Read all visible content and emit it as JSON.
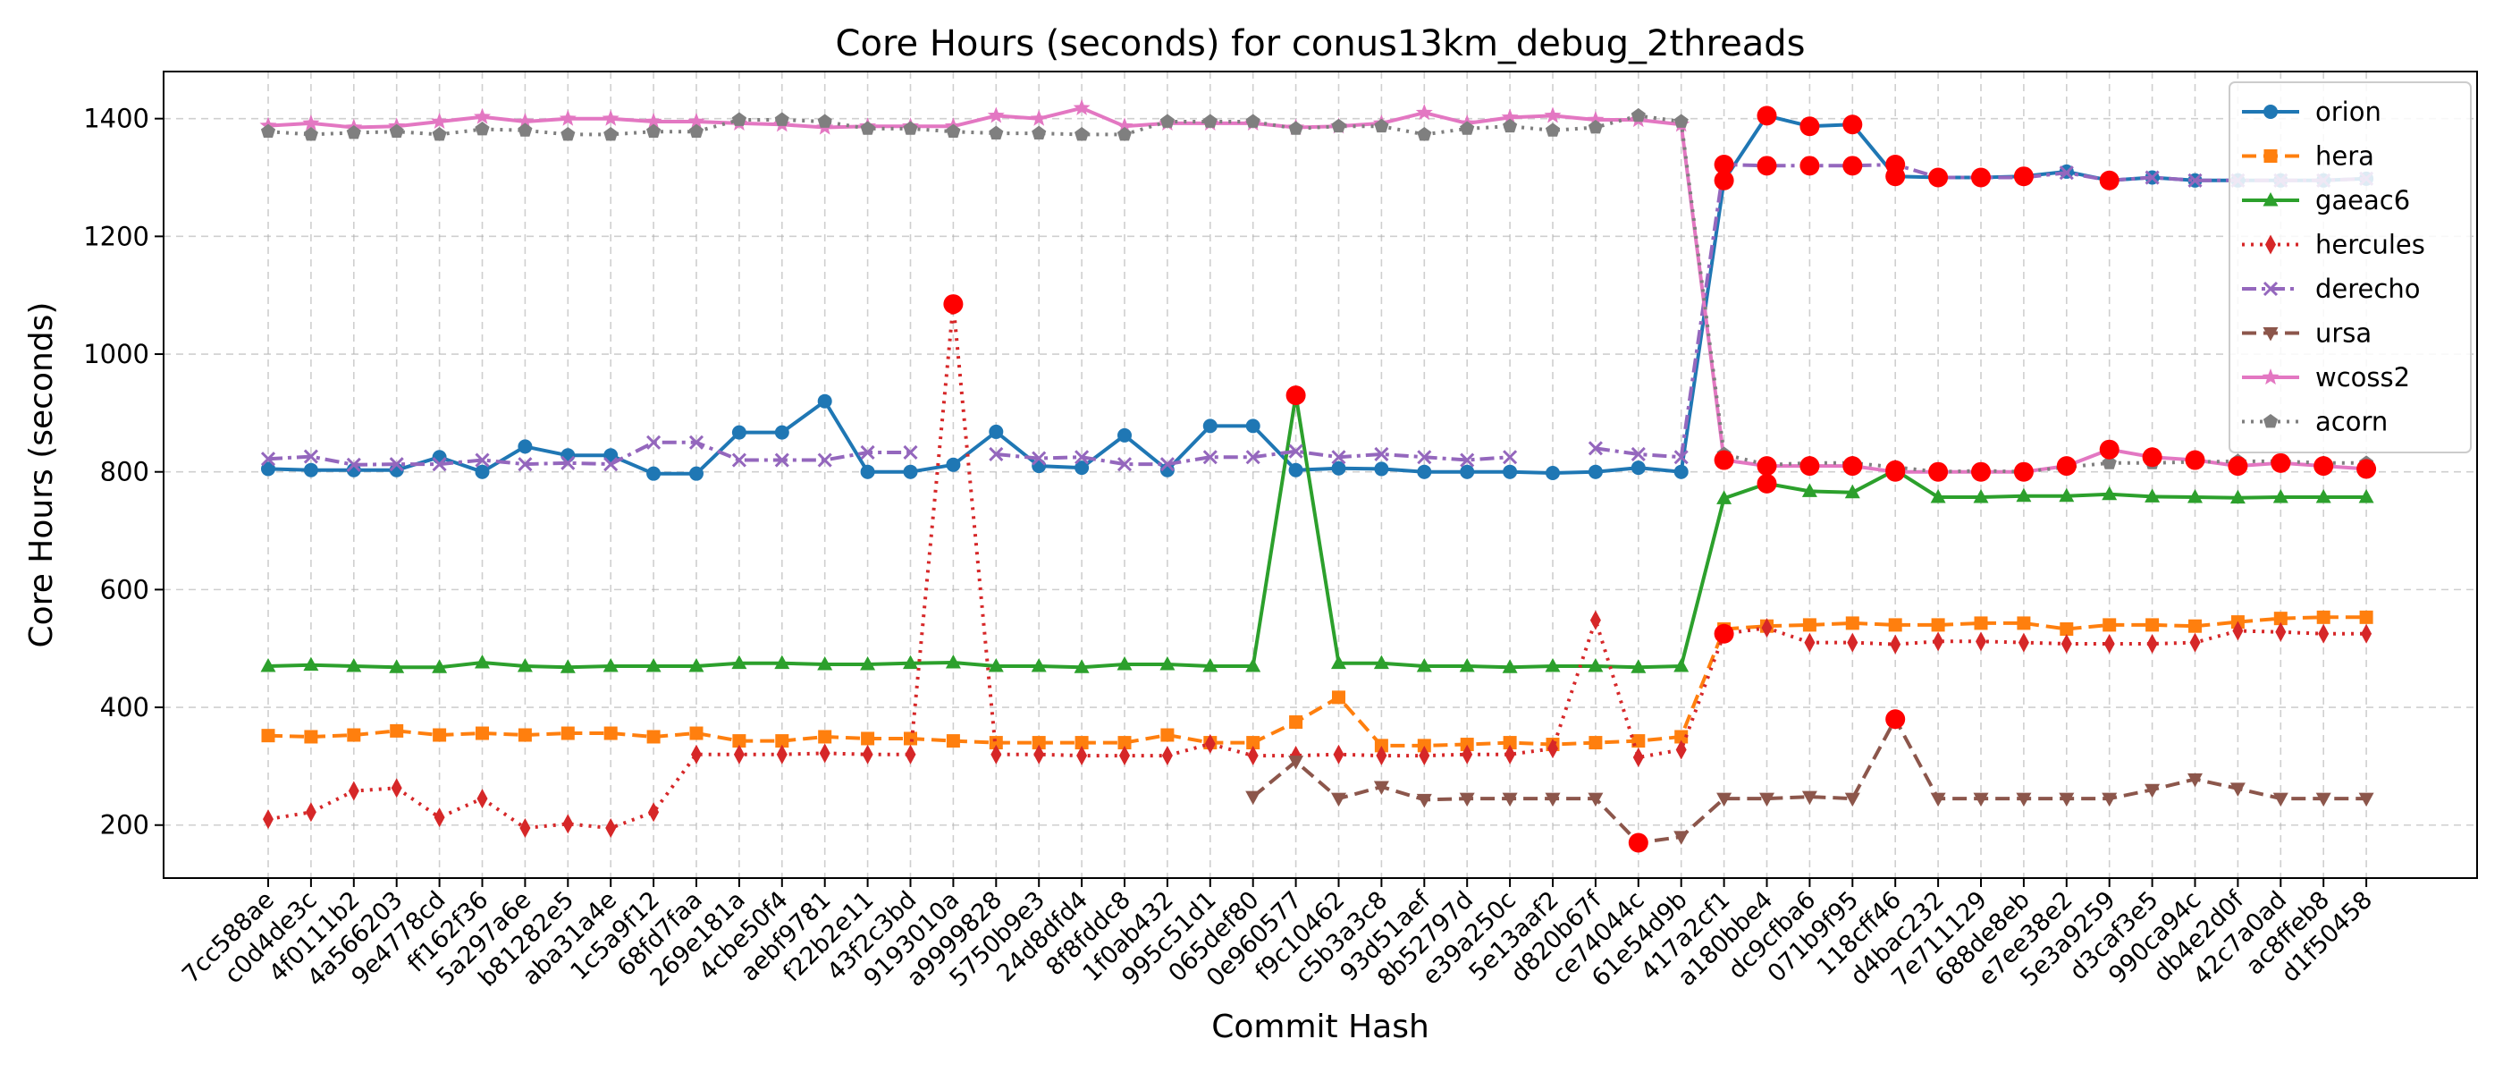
{
  "chart_data": {
    "type": "line",
    "title": "Core Hours (seconds) for conus13km_debug_2threads",
    "xlabel": "Commit Hash",
    "ylabel": "Core Hours (seconds)",
    "ylim": [
      110,
      1480
    ],
    "yticks": [
      200,
      400,
      600,
      800,
      1000,
      1200,
      1400
    ],
    "grid": true,
    "legend": "top-right",
    "highlight_color": "#ff0000",
    "categories": [
      "7cc588ae",
      "c0d4de3c",
      "4f0111b2",
      "4a566203",
      "9e4778cd",
      "ff162f36",
      "5a297a6e",
      "b81282e5",
      "aba31a4e",
      "1c5a9f12",
      "68fd7faa",
      "269e181a",
      "4cbe50f4",
      "aebf9781",
      "f22b2e11",
      "43f2c3bd",
      "9193010a",
      "a9999828",
      "5750b9e3",
      "24d8dfd4",
      "8f8fddc8",
      "1f0ab432",
      "995c51d1",
      "065def80",
      "0e960577",
      "f9c10462",
      "c5b3a3c8",
      "93d51aef",
      "8b52797d",
      "e39a250c",
      "5e13aaf2",
      "d820b67f",
      "ce74044c",
      "61e54d9b",
      "417a2cf1",
      "a180bbe4",
      "dc9cfba6",
      "071b9f95",
      "118cff46",
      "d4bac232",
      "7e711129",
      "688de8eb",
      "e7ee38e2",
      "5e3a9259",
      "d3caf3e5",
      "990ca94c",
      "db4e2d0f",
      "42c7a0ad",
      "ac8ffeb8",
      "d1f50458"
    ],
    "series": [
      {
        "name": "orion",
        "color": "#1f77b4",
        "marker": "circle",
        "dash": "solid",
        "values": [
          805,
          803,
          803,
          803,
          825,
          800,
          843,
          828,
          828,
          797,
          797,
          867,
          867,
          920,
          800,
          800,
          812,
          868,
          810,
          807,
          862,
          803,
          878,
          878,
          803,
          806,
          805,
          800,
          800,
          800,
          798,
          800,
          807,
          800,
          1295,
          1405,
          1387,
          1390,
          1302,
          1300,
          1300,
          1302,
          1310,
          1295,
          1300,
          1295,
          1295,
          1295,
          1295,
          1298
        ],
        "highlight": [
          34,
          35,
          36,
          37,
          38,
          39,
          40,
          41,
          43
        ]
      },
      {
        "name": "hera",
        "color": "#ff7f0e",
        "marker": "square",
        "dash": "dashed",
        "values": [
          352,
          350,
          353,
          360,
          353,
          356,
          353,
          356,
          356,
          350,
          356,
          343,
          343,
          350,
          347,
          347,
          343,
          340,
          340,
          340,
          340,
          353,
          340,
          340,
          375,
          417,
          335,
          335,
          337,
          340,
          337,
          340,
          343,
          350,
          533,
          538,
          540,
          543,
          540,
          540,
          543,
          543,
          533,
          540,
          540,
          538,
          545,
          551,
          553,
          553
        ],
        "highlight": []
      },
      {
        "name": "gaeac6",
        "color": "#2ca02c",
        "marker": "triangle",
        "dash": "solid",
        "values": [
          470,
          472,
          470,
          468,
          468,
          476,
          470,
          468,
          470,
          470,
          470,
          475,
          475,
          473,
          473,
          475,
          476,
          470,
          470,
          468,
          473,
          473,
          470,
          470,
          930,
          475,
          475,
          470,
          470,
          468,
          470,
          470,
          468,
          470,
          755,
          780,
          767,
          765,
          803,
          757,
          757,
          759,
          759,
          762,
          758,
          757,
          756,
          757,
          757,
          757
        ],
        "highlight": [
          24,
          35,
          38
        ]
      },
      {
        "name": "hercules",
        "color": "#d62728",
        "marker": "thin_diamond",
        "dash": "dotted",
        "values": [
          210,
          222,
          258,
          263,
          213,
          245,
          195,
          202,
          195,
          222,
          320,
          320,
          320,
          322,
          320,
          320,
          1085,
          320,
          320,
          318,
          318,
          318,
          338,
          318,
          318,
          320,
          318,
          318,
          320,
          320,
          330,
          548,
          315,
          328,
          525,
          535,
          510,
          510,
          507,
          512,
          512,
          510,
          508,
          508,
          508,
          510,
          530,
          528,
          525,
          525
        ],
        "highlight": [
          16,
          34
        ]
      },
      {
        "name": "derecho",
        "color": "#9467bd",
        "marker": "x",
        "dash": "dashdot",
        "values": [
          822,
          826,
          812,
          813,
          813,
          820,
          813,
          815,
          813,
          850,
          850,
          820,
          820,
          820,
          833,
          833,
          null,
          830,
          823,
          825,
          813,
          813,
          825,
          825,
          835,
          825,
          830,
          825,
          820,
          825,
          null,
          840,
          830,
          825,
          1322,
          1320,
          1320,
          1320,
          1322,
          1300,
          1300,
          1300,
          1308,
          1295,
          1300,
          1295,
          1295,
          1295,
          1295,
          1298
        ],
        "highlight": [
          34,
          35,
          36,
          37,
          38
        ]
      },
      {
        "name": "ursa",
        "color": "#8c564b",
        "marker": "triangle_down",
        "dash": "dashed",
        "values": [
          null,
          null,
          null,
          null,
          null,
          null,
          null,
          null,
          null,
          null,
          null,
          null,
          null,
          null,
          null,
          null,
          null,
          null,
          null,
          null,
          null,
          null,
          null,
          248,
          308,
          245,
          265,
          243,
          245,
          245,
          245,
          245,
          170,
          180,
          245,
          245,
          248,
          245,
          380,
          245,
          245,
          245,
          245,
          245,
          260,
          278,
          262,
          245,
          245,
          245
        ],
        "highlight": [
          32,
          38
        ]
      },
      {
        "name": "wcoss2",
        "color": "#e377c2",
        "marker": "star",
        "dash": "solid",
        "values": [
          1388,
          1392,
          1385,
          1387,
          1395,
          1403,
          1395,
          1400,
          1400,
          1395,
          1395,
          1392,
          1390,
          1385,
          1387,
          1387,
          1387,
          1405,
          1400,
          1418,
          1387,
          1392,
          1392,
          1392,
          1385,
          1387,
          1392,
          1410,
          1392,
          1402,
          1405,
          1398,
          1398,
          1390,
          820,
          810,
          810,
          810,
          800,
          800,
          800,
          800,
          810,
          838,
          825,
          820,
          810,
          815,
          810,
          805
        ],
        "highlight": [
          34,
          35,
          36,
          37,
          38,
          39,
          40,
          41,
          42,
          43,
          44,
          45,
          46,
          47,
          48,
          49
        ]
      },
      {
        "name": "acorn",
        "color": "#7f7f7f",
        "marker": "pentagon",
        "dash": "dotted",
        "values": [
          1378,
          1373,
          1376,
          1378,
          1373,
          1382,
          1380,
          1373,
          1373,
          1378,
          1378,
          1398,
          1398,
          1395,
          1383,
          1383,
          1378,
          1375,
          1375,
          1373,
          1373,
          1395,
          1395,
          1395,
          1383,
          1387,
          1387,
          1373,
          1383,
          1387,
          1380,
          1385,
          1405,
          1395,
          830,
          812,
          815,
          815,
          808,
          800,
          802,
          800,
          808,
          815,
          815,
          817,
          818,
          818,
          815,
          815
        ],
        "highlight": []
      }
    ]
  }
}
